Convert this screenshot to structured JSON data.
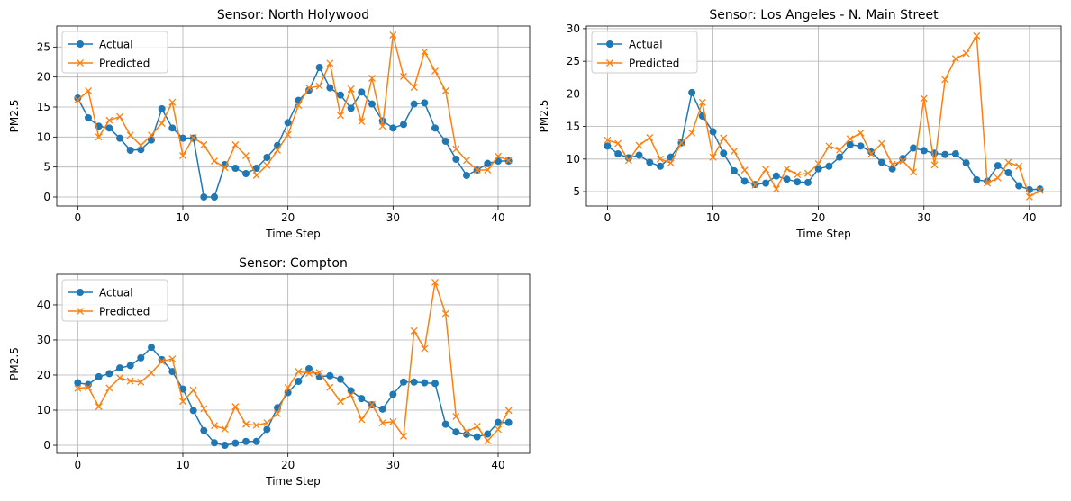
{
  "chart_data": [
    {
      "type": "line",
      "title": "Sensor: North Holywood",
      "xlabel": "Time Step",
      "ylabel": "PM2.5",
      "xlim": [
        -2,
        43
      ],
      "ylim": [
        -1.5,
        28.5
      ],
      "xticks": [
        0,
        10,
        20,
        30,
        40
      ],
      "yticks": [
        0,
        5,
        10,
        15,
        20,
        25
      ],
      "grid": true,
      "legend": "top-left",
      "x": [
        0,
        1,
        2,
        3,
        4,
        5,
        6,
        7,
        8,
        9,
        10,
        11,
        12,
        13,
        14,
        15,
        16,
        17,
        18,
        19,
        20,
        21,
        22,
        23,
        24,
        25,
        26,
        27,
        28,
        29,
        30,
        31,
        32,
        33,
        34,
        35,
        36,
        37,
        38,
        39,
        40,
        41
      ],
      "series": [
        {
          "name": "Actual",
          "color": "#1f77b4",
          "marker": "circle",
          "values": [
            16.5,
            13.2,
            11.8,
            11.5,
            9.8,
            7.8,
            7.9,
            9.5,
            14.7,
            11.5,
            9.8,
            9.8,
            0,
            0,
            5.4,
            4.8,
            3.9,
            4.8,
            6.6,
            8.6,
            12.4,
            16.1,
            17.8,
            21.6,
            18.2,
            17,
            14.8,
            17.5,
            15.5,
            12.7,
            11.5,
            12.1,
            15.5,
            15.7,
            11.5,
            9.3,
            6.3,
            3.6,
            4.5,
            5.6,
            6,
            6
          ]
        },
        {
          "name": "Predicted",
          "color": "#ff7f0e",
          "marker": "x",
          "values": [
            16.2,
            17.7,
            10,
            12.8,
            13.4,
            10.3,
            8.6,
            10.3,
            12.3,
            15.8,
            6.9,
            9.9,
            8.7,
            6,
            4.9,
            8.7,
            6.9,
            3.6,
            5.3,
            7.8,
            10.4,
            15.3,
            18.2,
            18.5,
            22.3,
            13.6,
            18,
            12.6,
            19.8,
            11.8,
            27,
            20.1,
            18.3,
            24.2,
            21,
            17.7,
            8,
            6.1,
            4.5,
            4.5,
            6.8,
            6.1
          ]
        }
      ]
    },
    {
      "type": "line",
      "title": "Sensor: Los Angeles - N. Main Street",
      "xlabel": "Time Step",
      "ylabel": "PM2.5",
      "xlim": [
        -2,
        43
      ],
      "ylim": [
        2.8,
        30.4
      ],
      "xticks": [
        0,
        10,
        20,
        30,
        40
      ],
      "yticks": [
        5,
        10,
        15,
        20,
        25,
        30
      ],
      "grid": true,
      "legend": "top-left",
      "x": [
        0,
        1,
        2,
        3,
        4,
        5,
        6,
        7,
        8,
        9,
        10,
        11,
        12,
        13,
        14,
        15,
        16,
        17,
        18,
        19,
        20,
        21,
        22,
        23,
        24,
        25,
        26,
        27,
        28,
        29,
        30,
        31,
        32,
        33,
        34,
        35,
        36,
        37,
        38,
        39,
        40,
        41
      ],
      "series": [
        {
          "name": "Actual",
          "color": "#1f77b4",
          "marker": "circle",
          "values": [
            12,
            10.8,
            10.2,
            10.6,
            9.5,
            8.9,
            10.3,
            12.5,
            20.2,
            16.6,
            14.2,
            10.9,
            8.2,
            6.6,
            6.1,
            6.3,
            7.4,
            6.9,
            6.5,
            6.4,
            8.5,
            8.9,
            10.3,
            12.2,
            12,
            11.1,
            9.5,
            8.5,
            10.1,
            11.7,
            11.3,
            10.9,
            10.7,
            10.8,
            9.4,
            6.8,
            6.6,
            9,
            7.9,
            5.9,
            5.3,
            5.4
          ]
        },
        {
          "name": "Predicted",
          "color": "#ff7f0e",
          "marker": "x",
          "values": [
            12.9,
            12.4,
            9.8,
            12.1,
            13.3,
            10,
            9.4,
            12.5,
            14,
            18.7,
            10.3,
            13.2,
            11.2,
            8.3,
            6,
            8.4,
            5.4,
            8.5,
            7.6,
            7.8,
            9.3,
            12,
            11.4,
            13.1,
            14,
            10.8,
            12.4,
            9.2,
            9.7,
            8,
            19.3,
            9.1,
            22.2,
            25.4,
            26.2,
            28.9,
            6.3,
            7.1,
            9.5,
            8.9,
            4.2,
            5.2
          ]
        }
      ]
    },
    {
      "type": "line",
      "title": "Sensor: Compton",
      "xlabel": "Time Step",
      "ylabel": "PM2.5",
      "xlim": [
        -2,
        43
      ],
      "ylim": [
        -2.3,
        48.7
      ],
      "xticks": [
        0,
        10,
        20,
        30,
        40
      ],
      "yticks": [
        0,
        10,
        20,
        30,
        40
      ],
      "grid": true,
      "legend": "top-left",
      "x": [
        0,
        1,
        2,
        3,
        4,
        5,
        6,
        7,
        8,
        9,
        10,
        11,
        12,
        13,
        14,
        15,
        16,
        17,
        18,
        19,
        20,
        21,
        22,
        23,
        24,
        25,
        26,
        27,
        28,
        29,
        30,
        31,
        32,
        33,
        34,
        35,
        36,
        37,
        38,
        39,
        40,
        41
      ],
      "series": [
        {
          "name": "Actual",
          "color": "#1f77b4",
          "marker": "circle",
          "values": [
            17.8,
            17.3,
            19.5,
            20.4,
            22,
            22.7,
            24.9,
            27.9,
            24.4,
            21,
            16,
            9.9,
            4.2,
            0.7,
            0,
            0.6,
            1.1,
            1.1,
            4.5,
            10.7,
            15,
            18.2,
            21.8,
            19.5,
            19.8,
            18.8,
            15.5,
            13.3,
            11.5,
            10.3,
            14.5,
            18,
            18,
            17.8,
            17.6,
            6,
            3.8,
            3.1,
            2.4,
            3.2,
            6.5,
            6.5
          ]
        },
        {
          "name": "Predicted",
          "color": "#ff7f0e",
          "marker": "x",
          "values": [
            16.2,
            16.5,
            11,
            16.3,
            19.2,
            18.3,
            18,
            20.6,
            23.9,
            24.6,
            12.5,
            15.7,
            10.4,
            5.6,
            4.6,
            11,
            6,
            5.7,
            6.4,
            9,
            16.4,
            21,
            20.5,
            20.7,
            16.5,
            12.5,
            14.3,
            7.3,
            11.6,
            6.4,
            6.7,
            2.6,
            32.6,
            27.5,
            46.4,
            37.5,
            8.2,
            3.8,
            5.4,
            1.3,
            4.5,
            9.9
          ]
        }
      ]
    }
  ]
}
